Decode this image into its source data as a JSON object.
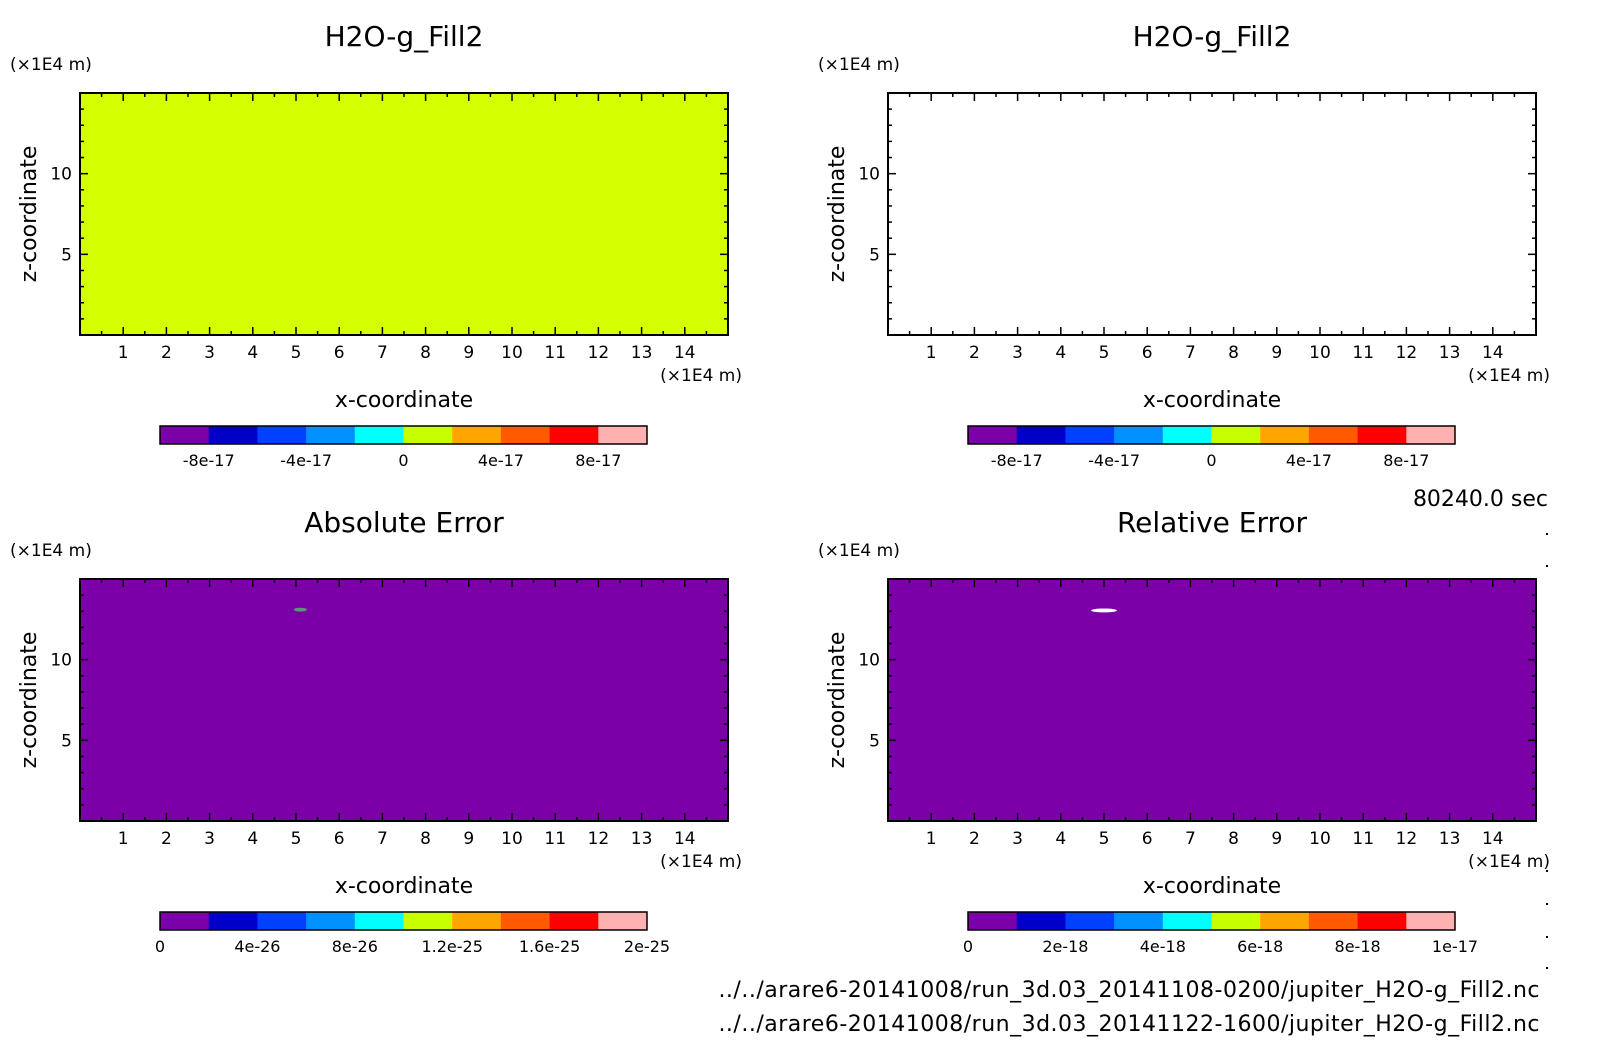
{
  "time_label": "80240.0 sec",
  "file_paths": [
    "../../arare6-20141008/run_3d.03_20141108-0200/jupiter_H2O-g_Fill2.nc",
    "../../arare6-20141008/run_3d.03_20141122-1600/jupiter_H2O-g_Fill2.nc"
  ],
  "colors": {
    "palette": [
      "#7b00a8",
      "#0000c8",
      "#0040ff",
      "#0090ff",
      "#00ffff",
      "#c8ff00",
      "#ffa500",
      "#ff5a00",
      "#ff0000",
      "#ffb0b0"
    ],
    "fill_panel1": "#d4ff00",
    "fill_error": "#7b00a8"
  },
  "chart_data": [
    {
      "type": "heatmap",
      "title": "H2O-g_Fill2",
      "xlabel": "x-coordinate",
      "ylabel": "z-coordinate",
      "x_unit": "(×1E4 m)",
      "y_unit": "(×1E4 m)",
      "xlim": [
        0,
        15
      ],
      "ylim": [
        0,
        15
      ],
      "xticks": [
        "1",
        "2",
        "3",
        "4",
        "5",
        "6",
        "7",
        "8",
        "9",
        "10",
        "11",
        "12",
        "13",
        "14"
      ],
      "yticks": [
        "5",
        "10"
      ],
      "field": "uniform",
      "fill": "lime",
      "colorbar_range": [
        -1e-16,
        1e-16
      ],
      "colorbar_ticks": [
        "-8e-17",
        "-4e-17",
        "0",
        "4e-17",
        "8e-17"
      ]
    },
    {
      "type": "heatmap",
      "title": "H2O-g_Fill2",
      "xlabel": "x-coordinate",
      "ylabel": "z-coordinate",
      "x_unit": "(×1E4 m)",
      "y_unit": "(×1E4 m)",
      "xlim": [
        0,
        15
      ],
      "ylim": [
        0,
        15
      ],
      "xticks": [
        "1",
        "2",
        "3",
        "4",
        "5",
        "6",
        "7",
        "8",
        "9",
        "10",
        "11",
        "12",
        "13",
        "14"
      ],
      "yticks": [
        "5",
        "10"
      ],
      "field": "empty",
      "fill": "white",
      "colorbar_range": [
        -1e-16,
        1e-16
      ],
      "colorbar_ticks": [
        "-8e-17",
        "-4e-17",
        "0",
        "4e-17",
        "8e-17"
      ]
    },
    {
      "type": "heatmap",
      "title": "Absolute Error",
      "xlabel": "x-coordinate",
      "ylabel": "z-coordinate",
      "x_unit": "(×1E4 m)",
      "y_unit": "(×1E4 m)",
      "xlim": [
        0,
        15
      ],
      "ylim": [
        0,
        15
      ],
      "xticks": [
        "1",
        "2",
        "3",
        "4",
        "5",
        "6",
        "7",
        "8",
        "9",
        "10",
        "11",
        "12",
        "13",
        "14"
      ],
      "yticks": [
        "5",
        "10"
      ],
      "field": "uniform",
      "fill": "purple",
      "feature": {
        "x": 5.1,
        "z": 13.1,
        "dx": 0.15,
        "dz": 0.12,
        "color": "#5a9a70"
      },
      "colorbar_range": [
        0,
        2e-25
      ],
      "colorbar_ticks": [
        "0",
        "4e-26",
        "8e-26",
        "1.2e-25",
        "1.6e-25",
        "2e-25"
      ]
    },
    {
      "type": "heatmap",
      "title": "Relative Error",
      "xlabel": "x-coordinate",
      "ylabel": "z-coordinate",
      "x_unit": "(×1E4 m)",
      "y_unit": "(×1E4 m)",
      "xlim": [
        0,
        15
      ],
      "ylim": [
        0,
        15
      ],
      "xticks": [
        "1",
        "2",
        "3",
        "4",
        "5",
        "6",
        "7",
        "8",
        "9",
        "10",
        "11",
        "12",
        "13",
        "14"
      ],
      "yticks": [
        "5",
        "10"
      ],
      "field": "uniform",
      "fill": "purple",
      "feature": {
        "x": 5.0,
        "z": 13.05,
        "dx": 0.3,
        "dz": 0.12,
        "color": "#ffffff"
      },
      "colorbar_range": [
        0,
        1e-17
      ],
      "colorbar_ticks": [
        "0",
        "2e-18",
        "4e-18",
        "6e-18",
        "8e-18",
        "1e-17"
      ]
    }
  ]
}
